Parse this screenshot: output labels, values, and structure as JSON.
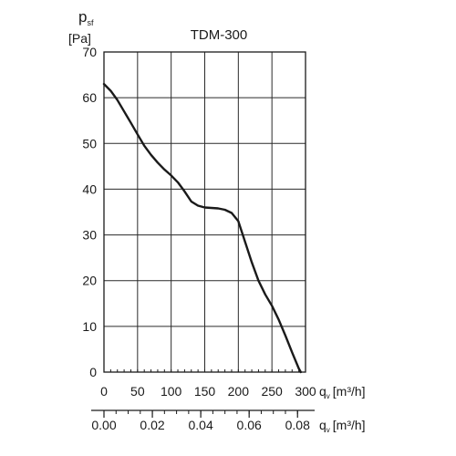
{
  "chart_data": {
    "type": "line",
    "title": "TDM-300",
    "ylabel_symbol": "p",
    "ylabel_sub": "sf",
    "ylabel_unit": "[Pa]",
    "ylim": [
      0,
      70
    ],
    "y_ticks": [
      "0",
      "10",
      "20",
      "30",
      "40",
      "50",
      "60",
      "70"
    ],
    "xlim": [
      0,
      300
    ],
    "x_ticks": [
      "0",
      "50",
      "100",
      "150",
      "200",
      "250",
      "300"
    ],
    "xlabel_symbol": "q",
    "xlabel_sub": "v",
    "xlabel_unit": "[m³/h]",
    "secondary_x": {
      "xlim": [
        0,
        0.0833
      ],
      "ticks": [
        "0.00",
        "0.02",
        "0.04",
        "0.06",
        "0.08"
      ],
      "tick_values": [
        0,
        0.02,
        0.04,
        0.06,
        0.08
      ],
      "label_symbol": "q",
      "label_sub": "v",
      "label_unit": "[m³/h]"
    },
    "grid": true,
    "series": [
      {
        "color": "#1a1a1a",
        "x": [
          0,
          10,
          20,
          30,
          40,
          50,
          60,
          70,
          80,
          90,
          100,
          110,
          120,
          130,
          140,
          150,
          160,
          170,
          180,
          190,
          200,
          210,
          220,
          230,
          240,
          250,
          260,
          270,
          280,
          290,
          293
        ],
        "y": [
          63,
          61.5,
          59.5,
          57,
          54.5,
          52,
          49.5,
          47.5,
          45.8,
          44.3,
          43,
          41.5,
          39.5,
          37.3,
          36.4,
          36,
          35.9,
          35.8,
          35.5,
          34.8,
          33,
          28.5,
          24,
          20,
          17,
          14.5,
          11.5,
          8,
          4.3,
          0.8,
          0
        ]
      }
    ]
  }
}
